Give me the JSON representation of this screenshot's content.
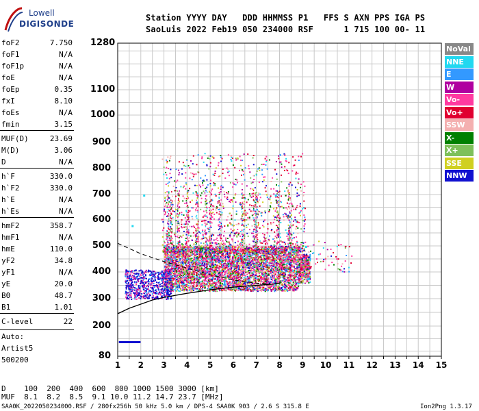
{
  "logo": {
    "line1": "Lowell",
    "line2": "DIGISONDE"
  },
  "header": {
    "line1": "Station YYYY DAY   DDD HHMMSS P1   FFS S AXN PPS IGA PS",
    "line2": "SaoLuis 2022 Feb19 050 234000 RSF      1 715 100 00- 11"
  },
  "params_group1": [
    {
      "k": "foF2",
      "v": "7.750"
    },
    {
      "k": "foF1",
      "v": "N/A"
    },
    {
      "k": "foF1p",
      "v": "N/A"
    },
    {
      "k": "foE",
      "v": "N/A"
    },
    {
      "k": "foEp",
      "v": "0.35"
    },
    {
      "k": "fxI",
      "v": "8.10"
    },
    {
      "k": "foEs",
      "v": "N/A"
    },
    {
      "k": "fmin",
      "v": "3.15"
    }
  ],
  "params_group2": [
    {
      "k": "MUF(D)",
      "v": "23.69"
    },
    {
      "k": "M(D)",
      "v": "3.06"
    },
    {
      "k": "D",
      "v": "N/A"
    }
  ],
  "params_group3": [
    {
      "k": "h`F",
      "v": "330.0"
    },
    {
      "k": "h`F2",
      "v": "330.0"
    },
    {
      "k": "h`E",
      "v": "N/A"
    },
    {
      "k": "h`Es",
      "v": "N/A"
    }
  ],
  "params_group4": [
    {
      "k": "hmF2",
      "v": "358.7"
    },
    {
      "k": "hmF1",
      "v": "N/A"
    },
    {
      "k": "hmE",
      "v": "110.0"
    },
    {
      "k": "yF2",
      "v": "34.8"
    },
    {
      "k": "yF1",
      "v": "N/A"
    },
    {
      "k": "yE",
      "v": "20.0"
    },
    {
      "k": "B0",
      "v": "48.7"
    },
    {
      "k": "B1",
      "v": "1.01"
    }
  ],
  "clevel": {
    "k": "C-level",
    "v": "22"
  },
  "auto": [
    "Auto:",
    "Artist5",
    "500200"
  ],
  "legend": [
    {
      "label": "NoVal",
      "color": "#888888"
    },
    {
      "label": "NNE",
      "color": "#22d8f0"
    },
    {
      "label": "E",
      "color": "#3399ff"
    },
    {
      "label": "W",
      "color": "#b000a0"
    },
    {
      "label": "Vo-",
      "color": "#ff3aa0"
    },
    {
      "label": "Vo+",
      "color": "#e00030"
    },
    {
      "label": "SSW",
      "color": "#f4b0b0"
    },
    {
      "label": "X-",
      "color": "#008000"
    },
    {
      "label": "X+",
      "color": "#7ec05a"
    },
    {
      "label": "SSE",
      "color": "#d0d020"
    },
    {
      "label": "NNW",
      "color": "#1010d0"
    }
  ],
  "y_ticks": [
    "1280",
    "1100",
    "1000",
    "900",
    "800",
    "700",
    "600",
    "500",
    "400",
    "300",
    "200",
    "80"
  ],
  "x_ticks": [
    "1",
    "2",
    "3",
    "4",
    "5",
    "6",
    "7",
    "8",
    "9",
    "10",
    "11",
    "12",
    "13",
    "14",
    "15"
  ],
  "bottom": {
    "line1": "D    100  200  400  600  800 1000 1500 3000 [km]",
    "line2": "MUF  8.1  8.2  8.5  9.1 10.0 11.2 14.7 23.7 [MHz]"
  },
  "footer": {
    "left": "SAA0K_2022050234000.RSF / 280fx256h 50 kHz 5.0 km / DPS-4 SAA0K 903 / 2.6 S 315.8 E",
    "right": "Ion2Png 1.3.17"
  }
}
